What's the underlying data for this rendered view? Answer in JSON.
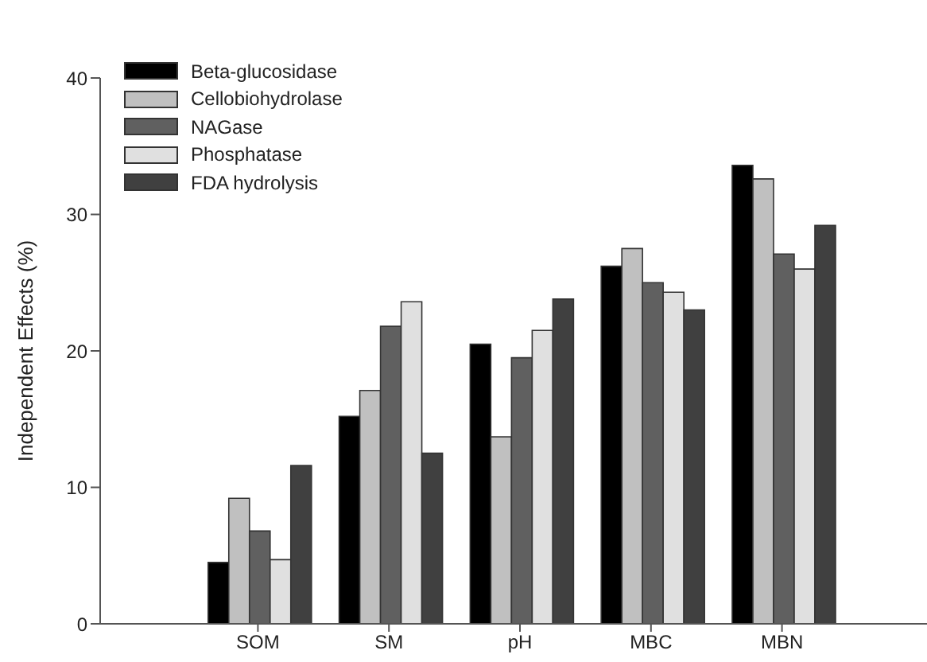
{
  "chart_data": {
    "type": "bar",
    "ylabel": "Independent Effects (%)",
    "categories": [
      "SOM",
      "SM",
      "pH",
      "MBC",
      "MBN"
    ],
    "series": [
      {
        "name": "Beta-glucosidase",
        "color": "#000000",
        "values": [
          4.5,
          15.2,
          20.5,
          26.2,
          33.6
        ]
      },
      {
        "name": "Cellobiohydrolase",
        "color": "#c0c0c0",
        "values": [
          9.2,
          17.1,
          13.7,
          27.5,
          32.6
        ]
      },
      {
        "name": "NAGase",
        "color": "#606060",
        "values": [
          6.8,
          21.8,
          19.5,
          25.0,
          27.1
        ]
      },
      {
        "name": "Phosphatase",
        "color": "#e0e0e0",
        "values": [
          4.7,
          23.6,
          21.5,
          24.3,
          26.0
        ]
      },
      {
        "name": "FDA hydrolysis",
        "color": "#404040",
        "values": [
          11.6,
          12.5,
          23.8,
          23.0,
          29.2
        ]
      }
    ],
    "ylim": [
      0,
      40
    ],
    "yticks": [
      0,
      10,
      20,
      30,
      40
    ],
    "grid": false,
    "legend": "top left"
  }
}
